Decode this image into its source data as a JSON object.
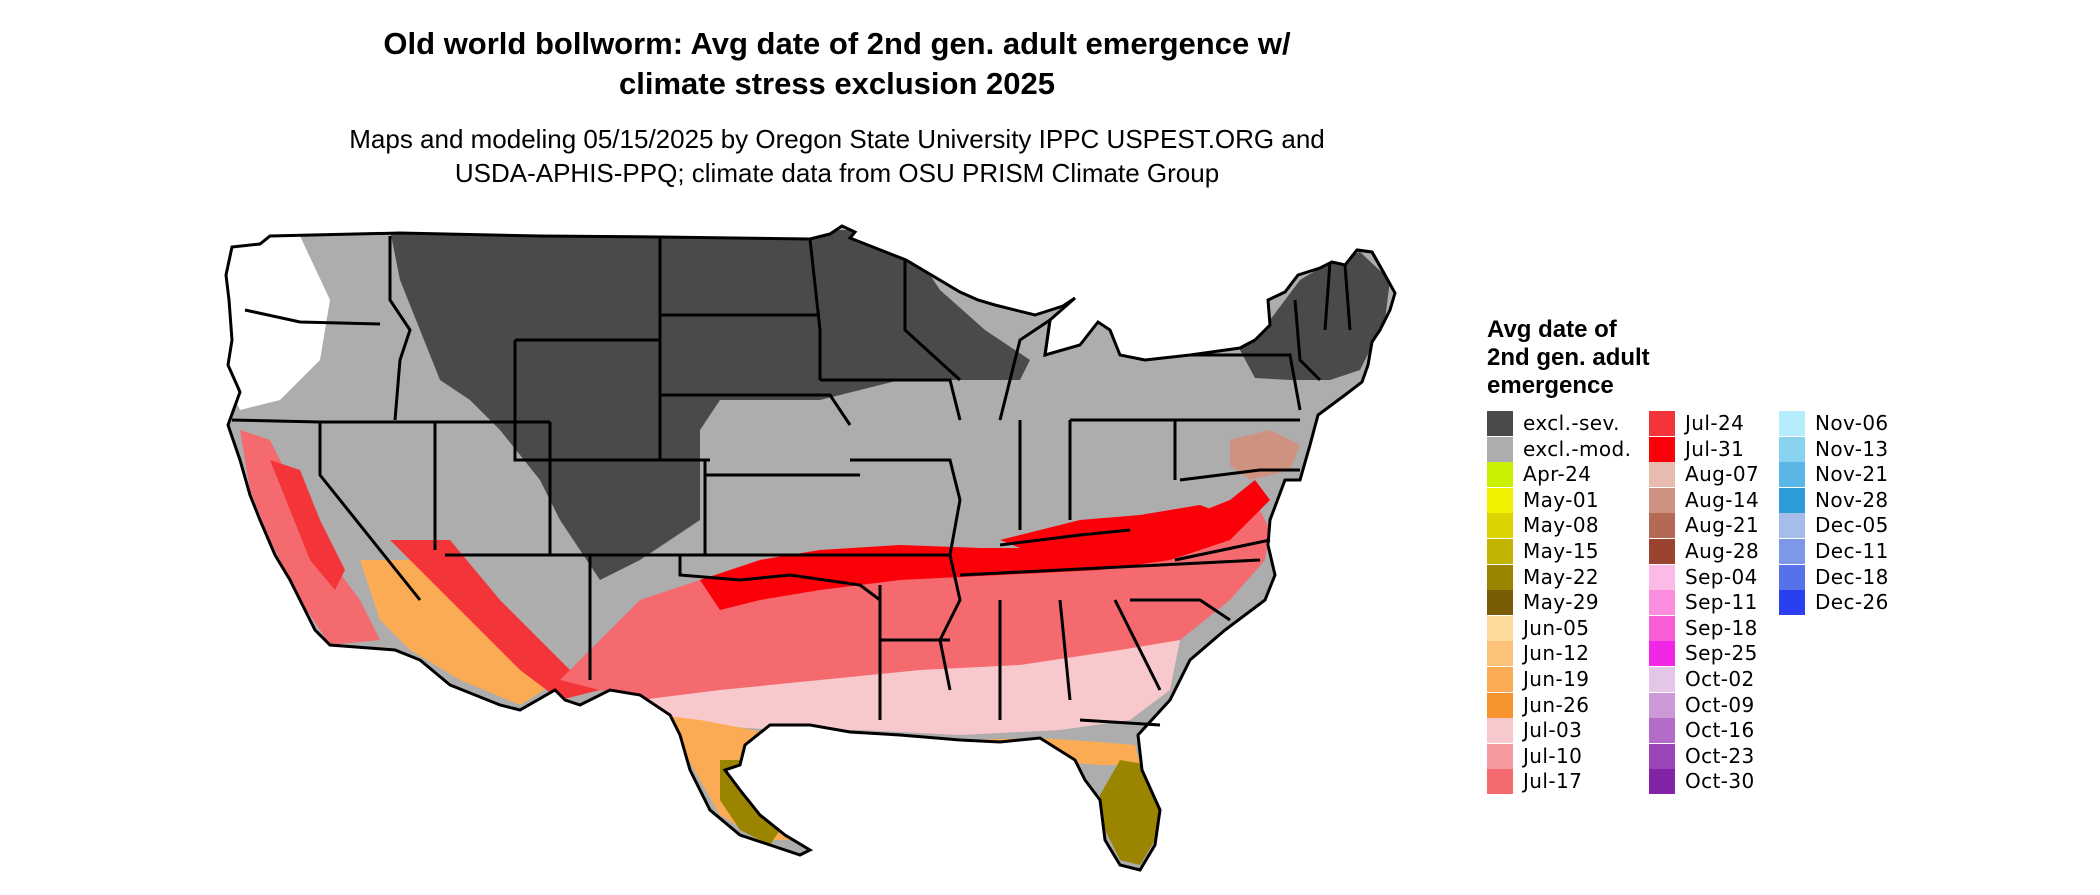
{
  "title_line1": "Old world bollworm: Avg date of 2nd gen. adult emergence w/",
  "title_line2": "climate stress exclusion 2025",
  "subtitle_line1": "Maps and modeling 05/15/2025 by Oregon State University IPPC USPEST.ORG and",
  "subtitle_line2": "USDA-APHIS-PPQ; climate data from OSU PRISM Climate Group",
  "legend": {
    "title_line1": "Avg date of",
    "title_line2": "2nd gen. adult",
    "title_line3": "emergence",
    "columns": [
      [
        {
          "label": "excl.-sev.",
          "color": "#4a4a4a"
        },
        {
          "label": "excl.-mod.",
          "color": "#adadad"
        },
        {
          "label": "Apr-24",
          "color": "#c8f000"
        },
        {
          "label": "May-01",
          "color": "#f2f200"
        },
        {
          "label": "May-08",
          "color": "#dcd400"
        },
        {
          "label": "May-15",
          "color": "#c2b400"
        },
        {
          "label": "May-22",
          "color": "#9a8400"
        },
        {
          "label": "May-29",
          "color": "#7b5c06"
        },
        {
          "label": "Jun-05",
          "color": "#fdd99a"
        },
        {
          "label": "Jun-12",
          "color": "#fcc27a"
        },
        {
          "label": "Jun-19",
          "color": "#fcab55"
        },
        {
          "label": "Jun-26",
          "color": "#f8942f"
        },
        {
          "label": "Jul-03",
          "color": "#f7c8cc"
        },
        {
          "label": "Jul-10",
          "color": "#f59b9f"
        },
        {
          "label": "Jul-17",
          "color": "#f46a6e"
        }
      ],
      [
        {
          "label": "Jul-24",
          "color": "#f3353a"
        },
        {
          "label": "Jul-31",
          "color": "#fb0009"
        },
        {
          "label": "Aug-07",
          "color": "#e9bcb1"
        },
        {
          "label": "Aug-14",
          "color": "#cf9180"
        },
        {
          "label": "Aug-21",
          "color": "#b46856"
        },
        {
          "label": "Aug-28",
          "color": "#9a4331"
        },
        {
          "label": "Sep-04",
          "color": "#fcbbe6"
        },
        {
          "label": "Sep-11",
          "color": "#fb8ede"
        },
        {
          "label": "Sep-18",
          "color": "#fa5bd6"
        },
        {
          "label": "Sep-25",
          "color": "#f326e8"
        },
        {
          "label": "Oct-02",
          "color": "#e3c6e8"
        },
        {
          "label": "Oct-09",
          "color": "#cc98d8"
        },
        {
          "label": "Oct-16",
          "color": "#b46cc9"
        },
        {
          "label": "Oct-23",
          "color": "#9a46b8"
        },
        {
          "label": "Oct-30",
          "color": "#8324a7"
        }
      ],
      [
        {
          "label": "Nov-06",
          "color": "#b3ecfa"
        },
        {
          "label": "Nov-13",
          "color": "#86d2ef"
        },
        {
          "label": "Nov-21",
          "color": "#5ab6e6"
        },
        {
          "label": "Nov-28",
          "color": "#2e9bd9"
        },
        {
          "label": "Dec-05",
          "color": "#a6bde9"
        },
        {
          "label": "Dec-11",
          "color": "#7d98e9"
        },
        {
          "label": "Dec-18",
          "color": "#5572ea"
        },
        {
          "label": "Dec-26",
          "color": "#2a3ff0"
        }
      ]
    ]
  },
  "map_colors": {
    "severe": "#4a4a4a",
    "moderate": "#adadad",
    "border": "#000000"
  }
}
